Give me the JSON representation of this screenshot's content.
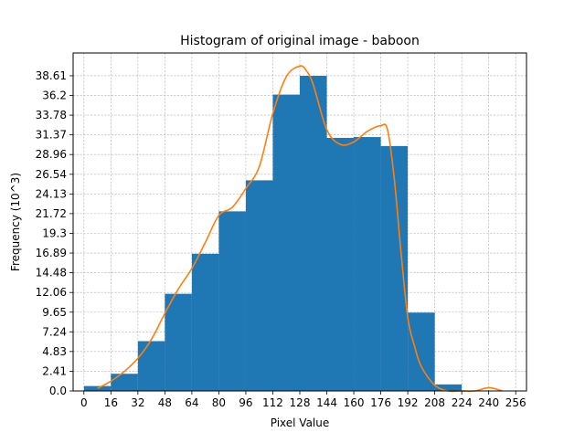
{
  "chart_data": {
    "type": "bar",
    "title": "Histogram of original image - baboon",
    "xlabel": "Pixel Value",
    "ylabel": "Frequency (10^3)",
    "xlim": [
      -6.4,
      262.4
    ],
    "ylim": [
      0,
      41.4
    ],
    "x_ticks": [
      0,
      16,
      32,
      48,
      64,
      80,
      96,
      112,
      128,
      144,
      160,
      176,
      192,
      208,
      224,
      240,
      256
    ],
    "y_tick_labels": [
      "0.0",
      "2.41",
      "4.83",
      "7.24",
      "9.65",
      "12.06",
      "14.48",
      "16.89",
      "19.3",
      "21.72",
      "24.13",
      "26.54",
      "28.96",
      "31.37",
      "33.78",
      "36.2",
      "38.61"
    ],
    "y_tick_values": [
      0,
      2.41,
      4.83,
      7.24,
      9.65,
      12.06,
      14.48,
      16.89,
      19.3,
      21.72,
      24.13,
      26.54,
      28.96,
      31.37,
      33.78,
      36.2,
      38.61
    ],
    "grid": true,
    "bins": {
      "edges": [
        0,
        16,
        32,
        48,
        64,
        80,
        96,
        112,
        128,
        144,
        160,
        176,
        192,
        208,
        224,
        240,
        256
      ],
      "values": [
        0.6,
        2.1,
        6.1,
        11.9,
        16.8,
        22.0,
        25.8,
        36.3,
        38.6,
        31.0,
        31.1,
        30.0,
        9.6,
        0.8,
        0.0,
        0.0
      ],
      "color": "#1f77b4"
    },
    "series": [
      {
        "type": "line",
        "color": "#ff7f0e",
        "x": [
          8,
          16,
          24,
          32,
          40,
          48,
          56,
          64,
          72,
          80,
          88,
          96,
          104,
          112,
          120,
          128,
          132,
          136,
          144,
          152,
          160,
          168,
          176,
          180,
          184,
          188,
          192,
          196,
          200,
          208,
          216,
          224,
          232,
          240,
          248
        ],
        "y": [
          0.3,
          1.2,
          2.4,
          4.0,
          6.3,
          9.5,
          12.5,
          15.0,
          18.2,
          21.5,
          22.5,
          24.8,
          27.5,
          34.0,
          38.5,
          39.8,
          39.2,
          37.5,
          32.0,
          30.2,
          30.5,
          31.8,
          32.5,
          32.0,
          26.0,
          17.0,
          9.0,
          5.5,
          3.0,
          0.7,
          0.0,
          0.0,
          0.0,
          0.4,
          0.0
        ]
      }
    ]
  }
}
